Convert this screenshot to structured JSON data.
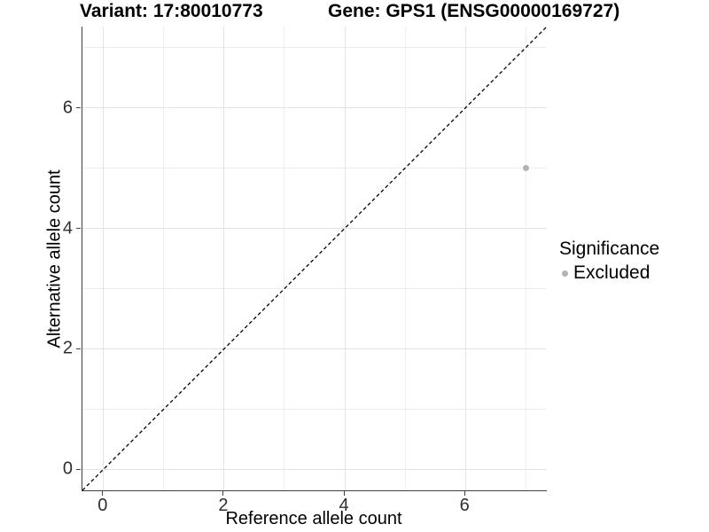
{
  "titles": {
    "variant": "Variant: 17:80010773",
    "gene": "Gene: GPS1 (ENSG00000169727)"
  },
  "legend": {
    "title": "Significance",
    "items": [
      {
        "label": "Excluded",
        "color": "#b3b3b3"
      }
    ]
  },
  "colors": {
    "point": "#b3b3b3",
    "grid_major": "#e3e3e3",
    "grid_minor": "#eeeeee",
    "axis_line": "#404040",
    "reference_line": "#000000",
    "tick_text": "#2e2e2e"
  },
  "chart_data": {
    "type": "scatter",
    "title": "Variant: 17:80010773   Gene: GPS1 (ENSG00000169727)",
    "xlabel": "Reference allele count",
    "ylabel": "Alternative allele count",
    "xlim": [
      -0.35,
      7.35
    ],
    "ylim": [
      -0.35,
      7.35
    ],
    "x_major_ticks": [
      0,
      2,
      4,
      6
    ],
    "y_major_ticks": [
      0,
      2,
      4,
      6
    ],
    "x_minor_gridlines": [
      1,
      3,
      5,
      7
    ],
    "y_minor_gridlines": [
      1,
      3,
      5,
      7
    ],
    "grid": true,
    "legend_position": "right",
    "legend_title": "Significance",
    "series": [
      {
        "name": "Excluded",
        "color": "#b3b3b3",
        "points": [
          {
            "x": 7,
            "y": 5
          }
        ]
      }
    ],
    "reference_line": {
      "type": "identity",
      "slope": 1,
      "intercept": 0,
      "style": "dashed",
      "color": "#000000"
    }
  }
}
